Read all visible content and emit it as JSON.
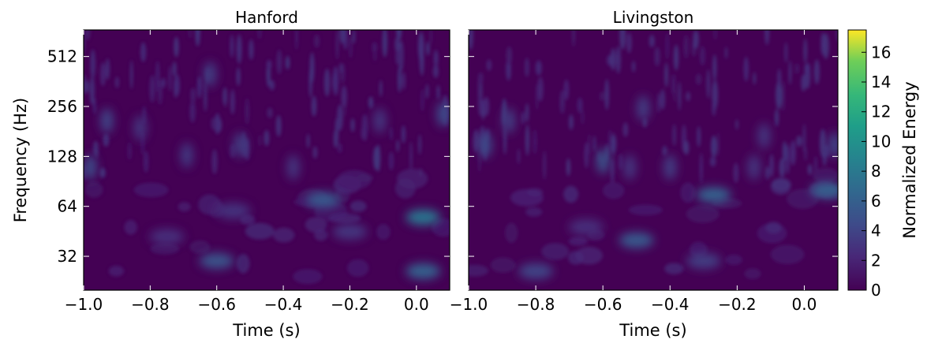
{
  "chart_data": [
    {
      "type": "heatmap",
      "title": "Hanford",
      "xlabel": "Time (s)",
      "ylabel": "Frequency (Hz)",
      "xlim": [
        -1.0,
        0.1
      ],
      "ylim": [
        20,
        740
      ],
      "yscale": "log2",
      "x_ticks": [
        -1.0,
        -0.8,
        -0.6,
        -0.4,
        -0.2,
        0.0
      ],
      "x_tick_labels": [
        "−1.0",
        "−0.8",
        "−0.6",
        "−0.4",
        "−0.2",
        "0.0"
      ],
      "y_ticks": [
        32,
        64,
        128,
        256,
        512
      ],
      "y_tick_labels": [
        "32",
        "64",
        "128",
        "256",
        "512"
      ],
      "colormap": "viridis",
      "blobs": [
        {
          "t": -0.98,
          "f": 110,
          "e": 4.5
        },
        {
          "t": -0.93,
          "f": 210,
          "e": 4.0
        },
        {
          "t": -0.83,
          "f": 190,
          "e": 3.0
        },
        {
          "t": -0.69,
          "f": 130,
          "e": 3.2
        },
        {
          "t": -0.62,
          "f": 400,
          "e": 3.5
        },
        {
          "t": -0.53,
          "f": 150,
          "e": 3.5
        },
        {
          "t": -0.6,
          "f": 30,
          "e": 5.0
        },
        {
          "t": -0.55,
          "f": 60,
          "e": 2.8
        },
        {
          "t": -0.37,
          "f": 110,
          "e": 3.0
        },
        {
          "t": -0.28,
          "f": 70,
          "e": 5.5
        },
        {
          "t": -0.2,
          "f": 45,
          "e": 3.0
        },
        {
          "t": -0.11,
          "f": 210,
          "e": 3.0
        },
        {
          "t": 0.02,
          "f": 55,
          "e": 7.5
        },
        {
          "t": 0.02,
          "f": 26,
          "e": 6.0
        },
        {
          "t": 0.08,
          "f": 230,
          "e": 4.5
        },
        {
          "t": -0.75,
          "f": 42,
          "e": 2.5
        }
      ]
    },
    {
      "type": "heatmap",
      "title": "Livingston",
      "xlabel": "Time (s)",
      "xlim": [
        -1.0,
        0.1
      ],
      "ylim": [
        20,
        740
      ],
      "yscale": "log2",
      "x_ticks": [
        -1.0,
        -0.8,
        -0.6,
        -0.4,
        -0.2,
        0.0
      ],
      "x_tick_labels": [
        "−1.0",
        "−0.8",
        "−0.6",
        "−0.4",
        "−0.2",
        "0.0"
      ],
      "colormap": "viridis",
      "colorbar": {
        "label": "Normalized Energy",
        "range": [
          0,
          17.5
        ],
        "ticks": [
          0,
          2,
          4,
          6,
          8,
          10,
          12,
          14,
          16
        ],
        "tick_labels": [
          "0",
          "2",
          "4",
          "6",
          "8",
          "10",
          "12",
          "14",
          "16"
        ]
      },
      "blobs": [
        {
          "t": -0.95,
          "f": 150,
          "e": 4.5
        },
        {
          "t": -0.88,
          "f": 210,
          "e": 3.5
        },
        {
          "t": -0.6,
          "f": 120,
          "e": 5.0
        },
        {
          "t": -0.52,
          "f": 110,
          "e": 3.0
        },
        {
          "t": -0.48,
          "f": 250,
          "e": 3.5
        },
        {
          "t": -0.4,
          "f": 110,
          "e": 3.5
        },
        {
          "t": -0.5,
          "f": 40,
          "e": 5.5
        },
        {
          "t": -0.8,
          "f": 26,
          "e": 4.0
        },
        {
          "t": -0.27,
          "f": 75,
          "e": 6.0
        },
        {
          "t": -0.15,
          "f": 110,
          "e": 3.0
        },
        {
          "t": -0.12,
          "f": 170,
          "e": 3.0
        },
        {
          "t": 0.07,
          "f": 80,
          "e": 6.0
        },
        {
          "t": 0.09,
          "f": 150,
          "e": 4.0
        },
        {
          "t": -0.65,
          "f": 48,
          "e": 2.5
        },
        {
          "t": -0.3,
          "f": 30,
          "e": 3.5
        }
      ]
    }
  ]
}
